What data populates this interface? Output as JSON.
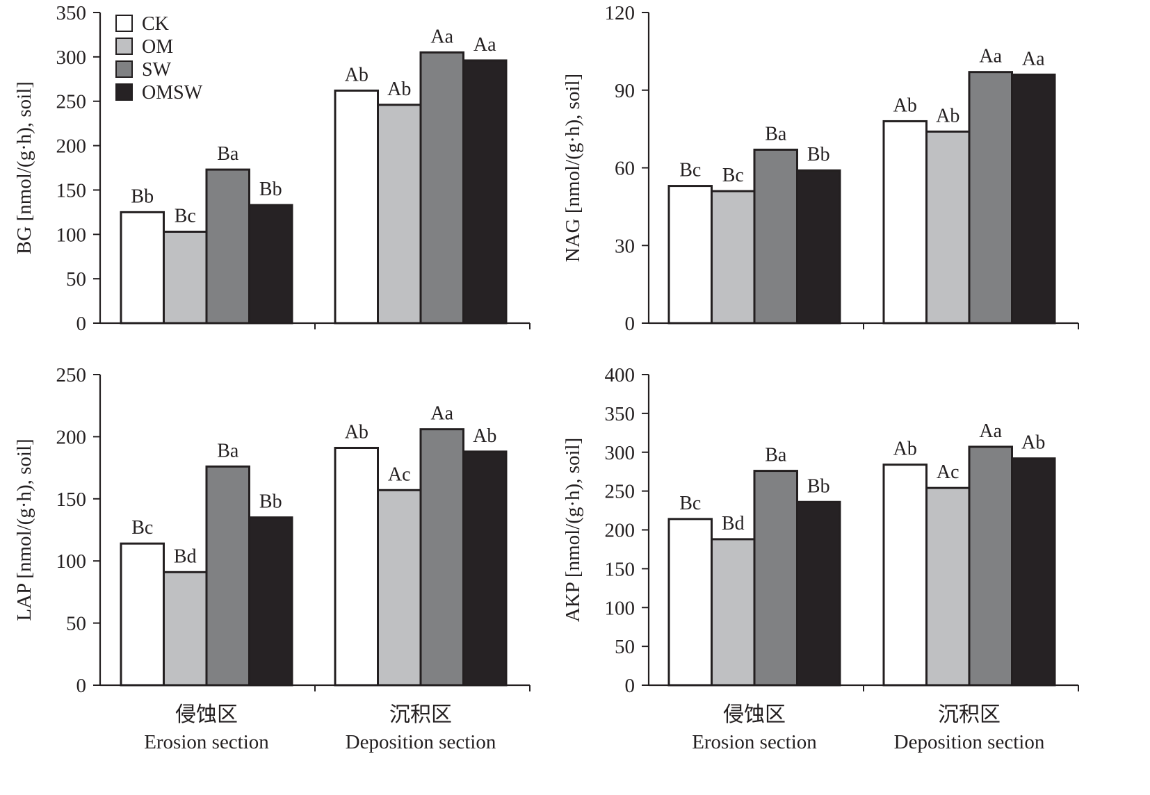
{
  "chart_data": [
    {
      "type": "bar",
      "ylabel": "BG [nmol/(g·h), soil]",
      "ylim": [
        0,
        350
      ],
      "yticks": [
        0,
        50,
        100,
        150,
        200,
        250,
        300,
        350
      ],
      "categories": [
        "侵蚀区|Erosion section",
        "沉积区|Deposition section"
      ],
      "series": [
        {
          "name": "CK",
          "values": [
            125,
            262
          ],
          "labels": [
            "Bb",
            "Ab"
          ]
        },
        {
          "name": "OM",
          "values": [
            103,
            246
          ],
          "labels": [
            "Bc",
            "Ab"
          ]
        },
        {
          "name": "SW",
          "values": [
            173,
            305
          ],
          "labels": [
            "Ba",
            "Aa"
          ]
        },
        {
          "name": "OMSW",
          "values": [
            133,
            296
          ],
          "labels": [
            "Bb",
            "Aa"
          ]
        }
      ],
      "legend": "top-left"
    },
    {
      "type": "bar",
      "ylabel": "NAG [nmol/(g·h), soil]",
      "ylim": [
        0,
        120
      ],
      "yticks": [
        0,
        30,
        60,
        90,
        120
      ],
      "categories": [
        "侵蚀区|Erosion section",
        "沉积区|Deposition section"
      ],
      "series": [
        {
          "name": "CK",
          "values": [
            53,
            78
          ],
          "labels": [
            "Bc",
            "Ab"
          ]
        },
        {
          "name": "OM",
          "values": [
            51,
            74
          ],
          "labels": [
            "Bc",
            "Ab"
          ]
        },
        {
          "name": "SW",
          "values": [
            67,
            97
          ],
          "labels": [
            "Ba",
            "Aa"
          ]
        },
        {
          "name": "OMSW",
          "values": [
            59,
            96
          ],
          "labels": [
            "Bb",
            "Aa"
          ]
        }
      ]
    },
    {
      "type": "bar",
      "ylabel": "LAP [nmol/(g·h), soil]",
      "ylim": [
        0,
        250
      ],
      "yticks": [
        0,
        50,
        100,
        150,
        200,
        250
      ],
      "categories": [
        "侵蚀区|Erosion section",
        "沉积区|Deposition section"
      ],
      "series": [
        {
          "name": "CK",
          "values": [
            114,
            191
          ],
          "labels": [
            "Bc",
            "Ab"
          ]
        },
        {
          "name": "OM",
          "values": [
            91,
            157
          ],
          "labels": [
            "Bd",
            "Ac"
          ]
        },
        {
          "name": "SW",
          "values": [
            176,
            206
          ],
          "labels": [
            "Ba",
            "Aa"
          ]
        },
        {
          "name": "OMSW",
          "values": [
            135,
            188
          ],
          "labels": [
            "Bb",
            "Ab"
          ]
        }
      ]
    },
    {
      "type": "bar",
      "ylabel": "AKP [nmol/(g·h), soil]",
      "ylim": [
        0,
        400
      ],
      "yticks": [
        0,
        50,
        100,
        150,
        200,
        250,
        300,
        350,
        400
      ],
      "categories": [
        "侵蚀区|Erosion section",
        "沉积区|Deposition section"
      ],
      "series": [
        {
          "name": "CK",
          "values": [
            214,
            284
          ],
          "labels": [
            "Bc",
            "Ab"
          ]
        },
        {
          "name": "OM",
          "values": [
            188,
            254
          ],
          "labels": [
            "Bd",
            "Ac"
          ]
        },
        {
          "name": "SW",
          "values": [
            276,
            307
          ],
          "labels": [
            "Ba",
            "Aa"
          ]
        },
        {
          "name": "OMSW",
          "values": [
            236,
            292
          ],
          "labels": [
            "Bb",
            "Ab"
          ]
        }
      ]
    }
  ],
  "legend": [
    {
      "name": "CK",
      "color": "#ffffff"
    },
    {
      "name": "OM",
      "color": "#bfc0c2"
    },
    {
      "name": "SW",
      "color": "#808183"
    },
    {
      "name": "OMSW",
      "color": "#262224"
    }
  ],
  "series_colors": [
    "#ffffff",
    "#bfc0c2",
    "#808183",
    "#262224"
  ]
}
